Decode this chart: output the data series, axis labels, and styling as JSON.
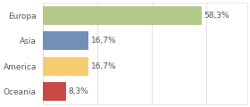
{
  "categories": [
    "Europa",
    "Asia",
    "America",
    "Oceania"
  ],
  "values": [
    58.3,
    16.7,
    16.7,
    8.3
  ],
  "labels": [
    "58,3%",
    "16,7%",
    "16,7%",
    "8,3%"
  ],
  "bar_colors": [
    "#b5c98a",
    "#7090b8",
    "#f5cc70",
    "#c94848"
  ],
  "background_color": "#ffffff",
  "plot_background": "#ffffff",
  "xlim": [
    0,
    75
  ],
  "bar_height": 0.75,
  "label_fontsize": 6.5,
  "tick_fontsize": 6.5,
  "grid_color": "#dddddd",
  "text_color": "#555555"
}
